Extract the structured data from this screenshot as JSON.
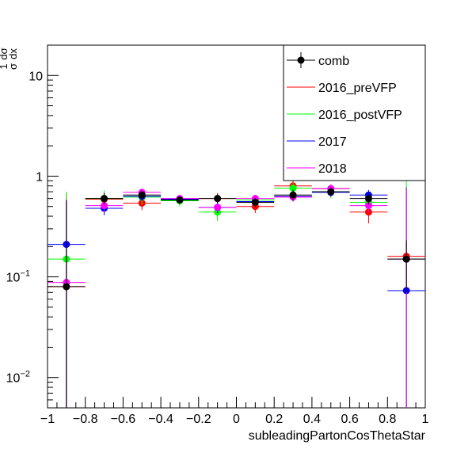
{
  "chart_data": {
    "type": "scatter",
    "xlabel": "subleadingPartonCosThetaStar",
    "ylabel_numerator": "1",
    "ylabel_over": "σ",
    "ylabel_dsigma": "dσ",
    "ylabel_dx": "dx",
    "xlim": [
      -1,
      1
    ],
    "ylim": [
      0.005,
      20
    ],
    "yscale": "log",
    "x_ticks": [
      -1,
      -0.8,
      -0.6,
      -0.4,
      -0.2,
      0,
      0.2,
      0.4,
      0.6,
      0.8,
      1
    ],
    "x_tick_labels": [
      "−1",
      "−0.8",
      "−0.6",
      "−0.4",
      "−0.2",
      "0",
      "0.2",
      "0.4",
      "0.6",
      "0.8",
      "1"
    ],
    "y_major_ticks": [
      0.01,
      0.1,
      1,
      10
    ],
    "y_tick_labels": [
      {
        "base": "10",
        "exp": "−2"
      },
      {
        "base": "10",
        "exp": "−1"
      },
      {
        "base": "1",
        "exp": ""
      },
      {
        "base": "10",
        "exp": ""
      }
    ],
    "bin_edges": [
      -1,
      -0.8,
      -0.6,
      -0.4,
      -0.2,
      0,
      0.2,
      0.4,
      0.6,
      0.8,
      1
    ],
    "legend_position": "top-right",
    "series": [
      {
        "name": "comb",
        "color": "#000000",
        "values": [
          0.08,
          0.6,
          0.65,
          0.58,
          0.6,
          0.55,
          0.65,
          0.7,
          0.6,
          0.15
        ],
        "err": [
          0.5,
          0.08,
          0.07,
          0.05,
          0.06,
          0.06,
          0.08,
          0.07,
          0.08,
          0.08
        ]
      },
      {
        "name": "2016_preVFP",
        "color": "#ff0000",
        "values": [
          0.08,
          0.59,
          0.54,
          0.58,
          0.6,
          0.5,
          0.8,
          0.75,
          0.44,
          0.16
        ],
        "err": [
          0.6,
          0.1,
          0.08,
          0.06,
          0.08,
          0.07,
          0.1,
          0.08,
          0.1,
          0.5
        ]
      },
      {
        "name": "2016_postVFP",
        "color": "#00ff00",
        "values": [
          0.15,
          0.6,
          0.62,
          0.57,
          0.44,
          0.58,
          0.76,
          0.7,
          0.55,
          0.15
        ],
        "err": [
          0.55,
          0.12,
          0.1,
          0.07,
          0.08,
          0.07,
          0.1,
          0.1,
          0.1,
          0.8
        ]
      },
      {
        "name": "2017",
        "color": "#0000ff",
        "values": [
          0.21,
          0.48,
          0.63,
          0.59,
          0.49,
          0.56,
          0.63,
          0.69,
          0.65,
          0.073
        ],
        "err": [
          0.35,
          0.07,
          0.06,
          0.05,
          0.06,
          0.05,
          0.07,
          0.06,
          0.08,
          0.7
        ]
      },
      {
        "name": "2018",
        "color": "#ff00ff",
        "values": [
          0.088,
          0.51,
          0.69,
          0.6,
          0.49,
          0.6,
          0.62,
          0.75,
          0.51,
          0.15
        ],
        "err": [
          0.5,
          0.07,
          0.06,
          0.05,
          0.05,
          0.05,
          0.06,
          0.06,
          0.07,
          0.6
        ]
      }
    ]
  }
}
